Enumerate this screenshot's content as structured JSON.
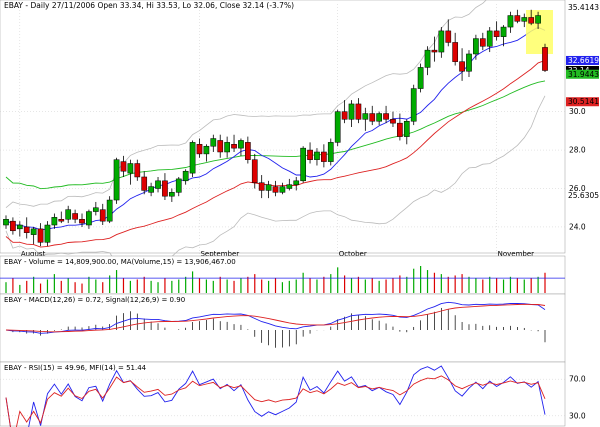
{
  "header": {
    "ticker": "EBAY",
    "title": "EBAY - Daily 27/11/2006 Open 33.34, Hi 33.53, Lo 32.06, Close 32.14 (-3.7%)"
  },
  "panels": {
    "volume": {
      "legend": "EBAY - Volume = 14,809,900.00, MA(Volume,15) = 13,906,467.00"
    },
    "macd": {
      "legend": "EBAY - MACD(12,26) = 0.72, Signal(12,26,9) = 0.90"
    },
    "rsi": {
      "legend": "EBAY - RSI(15) = 49.96, MFI(14) = 51.44"
    }
  },
  "colors": {
    "up": "#00aa00",
    "down": "#dd0000",
    "ma_short": "#2222ee",
    "ma_mid": "#dd2222",
    "ma_long": "#22bb22",
    "band": "#bbbbbb",
    "grid": "#cccccc",
    "highlight": "#ffff66"
  },
  "chart_data": {
    "type": "candlestick",
    "x_labels": [
      "August",
      "September",
      "October",
      "November"
    ],
    "x_label_bars": [
      2,
      28,
      48,
      71
    ],
    "price_axis": {
      "ticks": [
        24.0,
        26.0,
        28.0,
        30.0
      ],
      "ylim": [
        22.8,
        35.6
      ]
    },
    "right_labels": [
      {
        "text": "35.4143",
        "value": 35.4143,
        "bg": "#ffffff",
        "fg": "#000000"
      },
      {
        "text": "32.6619",
        "value": 32.6619,
        "bg": "#2222ee",
        "fg": "#ffffff"
      },
      {
        "text": "32.14",
        "value": 32.14,
        "bg": "#000000",
        "fg": "#ffffff"
      },
      {
        "text": "31.9443",
        "value": 31.9443,
        "bg": "#22bb22",
        "fg": "#000000"
      },
      {
        "text": "30.5141",
        "value": 30.5141,
        "bg": "#dd2222",
        "fg": "#000000"
      },
      {
        "text": "25.6305",
        "value": 25.6305,
        "bg": "#ffffff",
        "fg": "#000000"
      }
    ],
    "ohlc": [
      [
        24.1,
        24.6,
        23.9,
        24.4
      ],
      [
        24.3,
        24.5,
        23.6,
        23.8
      ],
      [
        23.9,
        24.3,
        23.5,
        24.1
      ],
      [
        24.0,
        24.5,
        23.4,
        23.7
      ],
      [
        23.6,
        24.0,
        23.1,
        23.9
      ],
      [
        23.9,
        24.2,
        23.0,
        23.2
      ],
      [
        23.2,
        24.3,
        23.0,
        24.1
      ],
      [
        24.1,
        24.7,
        23.9,
        24.5
      ],
      [
        24.4,
        24.8,
        24.2,
        24.3
      ],
      [
        24.4,
        25.1,
        24.2,
        24.9
      ],
      [
        24.7,
        24.9,
        24.2,
        24.4
      ],
      [
        24.4,
        24.7,
        24.0,
        24.2
      ],
      [
        24.1,
        24.9,
        23.9,
        24.8
      ],
      [
        24.8,
        25.3,
        24.6,
        25.0
      ],
      [
        24.9,
        25.2,
        24.1,
        24.3
      ],
      [
        24.3,
        25.6,
        24.2,
        25.4
      ],
      [
        25.4,
        27.6,
        25.2,
        27.5
      ],
      [
        27.4,
        27.7,
        26.6,
        26.9
      ],
      [
        26.8,
        27.5,
        26.2,
        27.3
      ],
      [
        27.3,
        27.5,
        26.4,
        26.6
      ],
      [
        26.6,
        26.9,
        25.7,
        25.9
      ],
      [
        25.8,
        26.3,
        25.6,
        26.1
      ],
      [
        26.0,
        26.6,
        25.8,
        26.4
      ],
      [
        26.4,
        26.8,
        25.4,
        25.6
      ],
      [
        25.6,
        26.0,
        25.3,
        25.8
      ],
      [
        25.8,
        26.6,
        25.6,
        26.5
      ],
      [
        26.4,
        27.0,
        26.2,
        26.9
      ],
      [
        26.8,
        28.5,
        26.6,
        28.4
      ],
      [
        28.3,
        28.6,
        27.6,
        27.8
      ],
      [
        27.8,
        28.3,
        27.4,
        28.2
      ],
      [
        28.2,
        28.8,
        27.9,
        28.6
      ],
      [
        28.5,
        28.8,
        27.6,
        27.9
      ],
      [
        27.9,
        28.7,
        27.6,
        28.4
      ],
      [
        28.3,
        28.8,
        27.9,
        28.1
      ],
      [
        28.1,
        28.6,
        27.7,
        28.5
      ],
      [
        28.4,
        28.7,
        27.3,
        27.5
      ],
      [
        27.5,
        27.8,
        26.0,
        26.3
      ],
      [
        26.3,
        26.7,
        25.5,
        25.9
      ],
      [
        25.9,
        26.4,
        25.5,
        26.2
      ],
      [
        26.1,
        26.4,
        25.6,
        25.8
      ],
      [
        25.8,
        26.3,
        25.7,
        26.1
      ],
      [
        26.0,
        26.5,
        25.9,
        26.2
      ],
      [
        26.2,
        26.6,
        25.9,
        26.4
      ],
      [
        26.4,
        28.2,
        26.3,
        28.1
      ],
      [
        28.0,
        28.4,
        27.3,
        27.5
      ],
      [
        27.5,
        28.1,
        27.2,
        27.9
      ],
      [
        27.9,
        28.3,
        27.1,
        27.4
      ],
      [
        27.4,
        28.6,
        27.2,
        28.4
      ],
      [
        28.4,
        30.1,
        28.2,
        30.0
      ],
      [
        30.0,
        30.6,
        29.4,
        29.6
      ],
      [
        29.6,
        30.6,
        29.2,
        30.4
      ],
      [
        30.4,
        30.7,
        29.4,
        29.6
      ],
      [
        29.6,
        30.2,
        29.0,
        29.9
      ],
      [
        29.9,
        30.3,
        29.3,
        29.5
      ],
      [
        29.5,
        30.0,
        29.3,
        29.9
      ],
      [
        29.9,
        30.3,
        29.4,
        29.6
      ],
      [
        29.6,
        30.0,
        29.2,
        29.4
      ],
      [
        29.4,
        29.9,
        28.5,
        28.7
      ],
      [
        28.7,
        29.6,
        28.3,
        29.5
      ],
      [
        29.5,
        31.4,
        29.3,
        31.2
      ],
      [
        31.2,
        32.5,
        31.0,
        32.3
      ],
      [
        32.3,
        33.4,
        31.9,
        33.2
      ],
      [
        33.2,
        33.9,
        32.6,
        33.1
      ],
      [
        33.1,
        34.4,
        32.8,
        34.2
      ],
      [
        34.2,
        34.8,
        33.4,
        33.6
      ],
      [
        33.6,
        34.1,
        32.4,
        32.6
      ],
      [
        32.6,
        33.3,
        31.6,
        32.1
      ],
      [
        32.1,
        33.2,
        31.8,
        33.0
      ],
      [
        33.0,
        34.0,
        32.7,
        33.8
      ],
      [
        33.8,
        34.1,
        33.2,
        33.4
      ],
      [
        33.4,
        34.4,
        33.1,
        34.2
      ],
      [
        34.2,
        34.7,
        33.7,
        33.9
      ],
      [
        33.9,
        34.5,
        33.4,
        34.4
      ],
      [
        34.4,
        35.2,
        34.1,
        35.0
      ],
      [
        35.0,
        35.3,
        34.6,
        34.7
      ],
      [
        34.7,
        35.1,
        34.4,
        34.9
      ],
      [
        34.9,
        35.3,
        34.5,
        34.6
      ],
      [
        34.6,
        35.2,
        34.3,
        35.0
      ],
      [
        33.34,
        33.53,
        32.06,
        32.14
      ]
    ],
    "volume": [
      40,
      55,
      30,
      45,
      60,
      35,
      50,
      70,
      45,
      55,
      40,
      35,
      60,
      50,
      40,
      65,
      85,
      55,
      45,
      50,
      60,
      45,
      40,
      55,
      45,
      50,
      60,
      80,
      55,
      50,
      45,
      60,
      50,
      45,
      55,
      60,
      70,
      50,
      45,
      55,
      40,
      45,
      50,
      75,
      55,
      50,
      60,
      70,
      95,
      65,
      55,
      60,
      50,
      55,
      45,
      50,
      55,
      65,
      60,
      90,
      100,
      85,
      75,
      70,
      60,
      65,
      70,
      60,
      55,
      50,
      60,
      55,
      50,
      60,
      55,
      50,
      55,
      60,
      75
    ],
    "volume_ma": 55,
    "indicator_axis": {
      "rsi_ticks": [
        70.0,
        30.0
      ]
    }
  }
}
